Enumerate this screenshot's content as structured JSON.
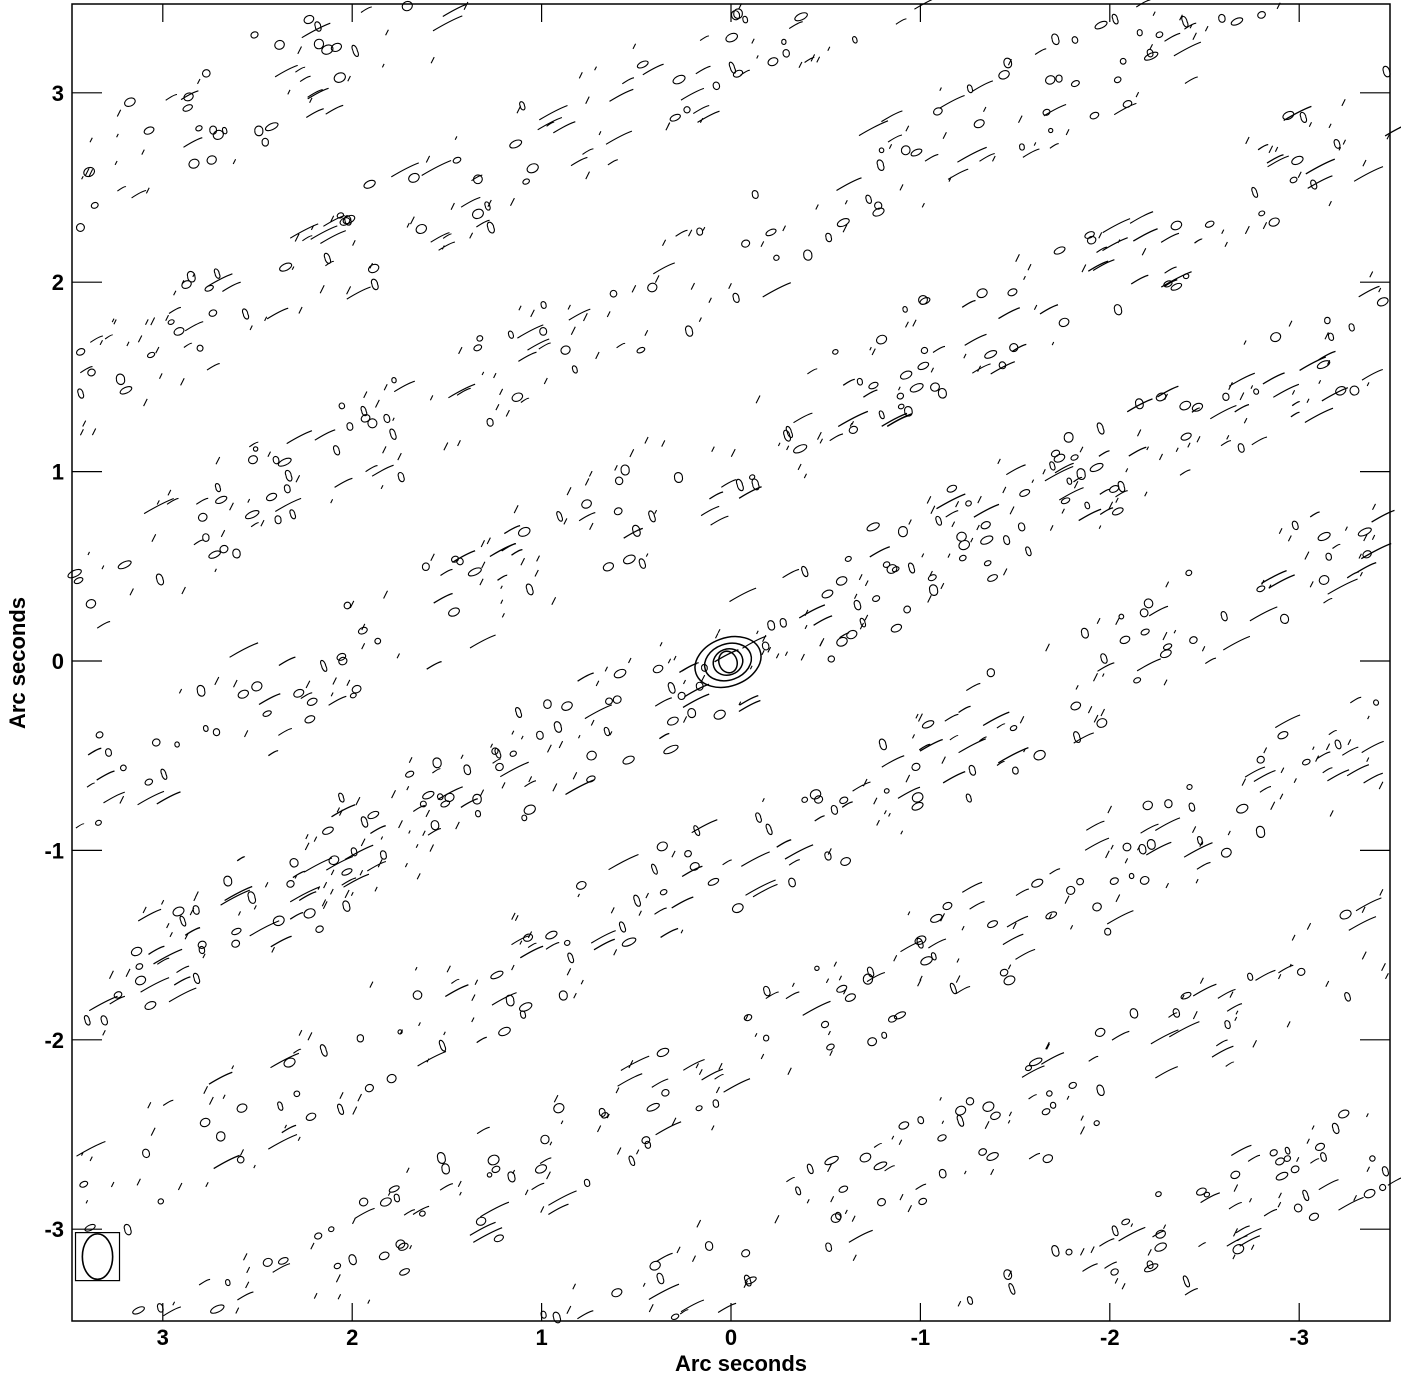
{
  "chart_data": {
    "type": "contour",
    "xlabel": "Arc seconds",
    "ylabel": "Arc seconds",
    "xlim": [
      3.5,
      -3.5
    ],
    "ylim": [
      -3.5,
      3.4
    ],
    "xticks": [
      3,
      2,
      1,
      0,
      -1,
      -2,
      -3
    ],
    "xtick_labels": [
      "3",
      "2",
      "1",
      "0",
      "-1",
      "-2",
      "-3"
    ],
    "yticks": [
      3,
      2,
      1,
      0,
      -1,
      -2,
      -3
    ],
    "ytick_labels": [
      "3",
      "2",
      "1",
      "0",
      "-1",
      "-2",
      "-3"
    ],
    "grid": false,
    "contour_color": "#000000",
    "source_peak": {
      "x": 0,
      "y": 0,
      "nested_contours": 4
    },
    "sidelobe_band_angle_deg": 27,
    "sidelobe_band_spacing_arcsec": 0.95,
    "beam": {
      "x": 3.35,
      "y": -3.15,
      "major_axis_arcsec": 0.12,
      "minor_axis_arcsec": 0.08,
      "position_angle_deg": 0
    }
  }
}
